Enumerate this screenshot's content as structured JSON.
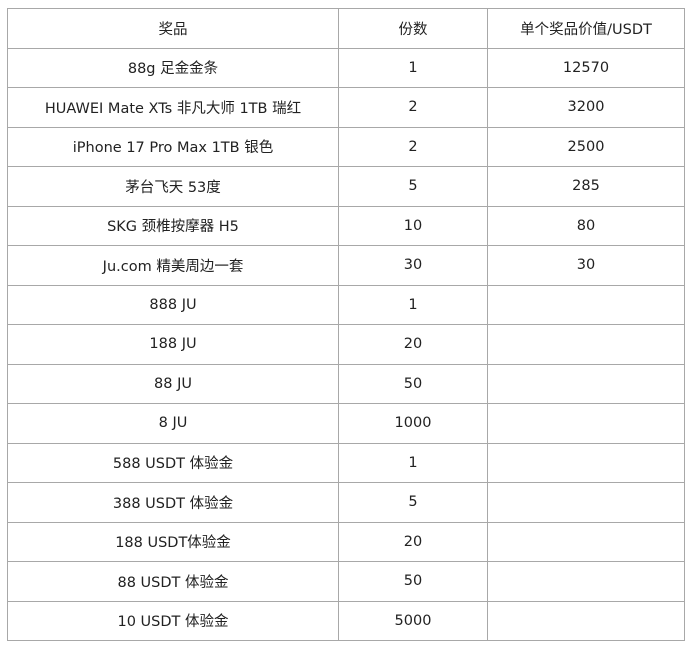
{
  "table": {
    "headers": [
      "奖品",
      "份数",
      "单个奖品价值/USDT"
    ],
    "rows": [
      [
        "88g 足金金条",
        "1",
        "12570"
      ],
      [
        "HUAWEI Mate XTs 非凡大师 1TB 瑞红",
        "2",
        "3200"
      ],
      [
        "iPhone 17 Pro Max 1TB 银色",
        "2",
        "2500"
      ],
      [
        "茅台飞天 53度",
        "5",
        "285"
      ],
      [
        "SKG 颈椎按摩器 H5",
        "10",
        "80"
      ],
      [
        "Ju.com 精美周边一套",
        "30",
        "30"
      ],
      [
        "888 JU",
        "1",
        ""
      ],
      [
        "188 JU",
        "20",
        ""
      ],
      [
        "88 JU",
        "50",
        ""
      ],
      [
        "8 JU",
        "1000",
        ""
      ],
      [
        "588 USDT 体验金",
        "1",
        ""
      ],
      [
        "388 USDT 体验金",
        "5",
        ""
      ],
      [
        "188 USDT体验金",
        "20",
        ""
      ],
      [
        "88 USDT 体验金",
        "50",
        ""
      ],
      [
        "10 USDT 体验金",
        "5000",
        ""
      ]
    ]
  }
}
